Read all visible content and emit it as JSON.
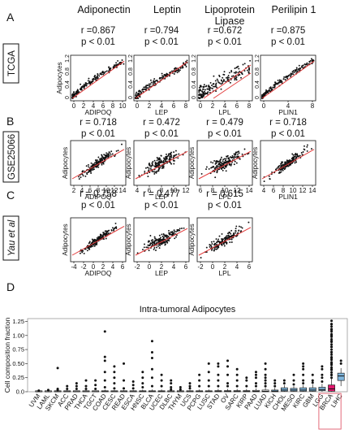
{
  "panels_header": {
    "columns": [
      "Adiponectin",
      "Leptin",
      "Lipoprotein\nLipase",
      "Perilipin 1"
    ]
  },
  "chart_data": [
    {
      "type": "scatter",
      "panel": "A",
      "dataset": "TCGA",
      "ylabel": "Adipocytes",
      "yticks": [
        "0",
        "0.4",
        "0.8",
        "1.2"
      ],
      "subplots": [
        {
          "xlabel": "ADIPOQ",
          "r": "r =0.867",
          "p": "p < 0.01",
          "xticks": [
            "0",
            "2",
            "4",
            "6",
            "8",
            "10"
          ],
          "xlim": [
            0,
            11
          ],
          "ylim": [
            0,
            1.3
          ],
          "corr": 0.867
        },
        {
          "xlabel": "LEP",
          "r": "r =0.794",
          "p": "p < 0.01",
          "xticks": [
            "0",
            "2",
            "4",
            "6",
            "8"
          ],
          "xlim": [
            0,
            9
          ],
          "ylim": [
            0,
            1.3
          ],
          "corr": 0.794
        },
        {
          "xlabel": "LPL",
          "r": "r =0.672",
          "p": "p < 0.01",
          "xticks": [
            "0",
            "2",
            "4",
            "6",
            "8"
          ],
          "xlim": [
            0,
            9
          ],
          "ylim": [
            0,
            1.3
          ],
          "corr": 0.672
        },
        {
          "xlabel": "PLIN1",
          "r": "r =0.875",
          "p": "p < 0.01",
          "xticks": [
            "0",
            "4",
            "8"
          ],
          "xlim": [
            0,
            10
          ],
          "ylim": [
            0,
            1.3
          ],
          "corr": 0.875
        }
      ]
    },
    {
      "type": "scatter",
      "panel": "B",
      "dataset": "GSE25066",
      "ylabel": "Adipocytes",
      "yticks": [],
      "subplots": [
        {
          "xlabel": "ADIPOQ",
          "r": "r = 0.718",
          "p": "p < 0.01",
          "xticks": [
            "2",
            "4",
            "6",
            "8",
            "10",
            "12",
            "14"
          ],
          "xlim": [
            1,
            15
          ],
          "corr": 0.718
        },
        {
          "xlabel": "LEP",
          "r": "r = 0.472",
          "p": "p < 0.01",
          "xticks": [
            "4",
            "6",
            "8",
            "10",
            "12"
          ],
          "xlim": [
            3,
            13
          ],
          "corr": 0.472
        },
        {
          "xlabel": "LPL",
          "r": "r = 0.479",
          "p": "p < 0.01",
          "xticks": [
            "6",
            "8",
            "10",
            "12",
            "14"
          ],
          "xlim": [
            5,
            15
          ],
          "corr": 0.479
        },
        {
          "xlabel": "PLIN1",
          "r": "r = 0.718",
          "p": "p < 0.01",
          "xticks": [
            "4",
            "6",
            "8",
            "10",
            "12",
            "14"
          ],
          "xlim": [
            3,
            15
          ],
          "corr": 0.718
        }
      ]
    },
    {
      "type": "scatter",
      "panel": "C",
      "dataset": "Yau et al",
      "ylabel": "Adipocytes",
      "yticks": [],
      "subplots": [
        {
          "xlabel": "ADIPOQ",
          "r": "r = 0.758",
          "p": "p < 0.01",
          "xticks": [
            "-4",
            "-2",
            "0",
            "2",
            "4",
            "6"
          ],
          "xlim": [
            -5,
            7
          ],
          "corr": 0.758
        },
        {
          "xlabel": "LEP",
          "r": "r = 0.477",
          "p": "p < 0.01",
          "xticks": [
            "-2",
            "0",
            "2",
            "4",
            "6"
          ],
          "xlim": [
            -3,
            7
          ],
          "corr": 0.477
        },
        {
          "xlabel": "LPL",
          "r": "r = 0.615",
          "p": "p < 0.01",
          "xticks": [
            "-2",
            "0",
            "2",
            "4",
            "6"
          ],
          "xlim": [
            -3,
            7
          ],
          "corr": 0.615
        }
      ]
    },
    {
      "type": "box",
      "panel": "D",
      "title": "Intra-tumoral Adipocytes",
      "ylabel": "Cell composition fraction",
      "yticks": [
        "0.0",
        "0.25",
        "0.50",
        "0.75",
        "1.00",
        "1.25"
      ],
      "ylim": [
        0,
        1.3
      ],
      "categories": [
        "UVM",
        "LAML",
        "SKCM",
        "ACC",
        "PRAD",
        "THCA",
        "TGCT",
        "COAD",
        "CESC",
        "READ",
        "ESCA",
        "HNSC",
        "BLCA",
        "UCEC",
        "DLBC",
        "THYM",
        "UCS",
        "PCPG",
        "LUSC",
        "STAD",
        "OV",
        "SARC",
        "KIRP",
        "PAAD",
        "LUAD",
        "KICH",
        "CHOL",
        "MESO",
        "KIRC",
        "GBM",
        "LGG",
        "BRCA",
        "LIHC"
      ],
      "highlight": "BRCA",
      "boxes": [
        {
          "q1": 0.0,
          "med": 0.0,
          "q3": 0.005,
          "wmax": 0.01,
          "out": [
            0.02
          ]
        },
        {
          "q1": 0.0,
          "med": 0.0,
          "q3": 0.005,
          "wmax": 0.01,
          "out": [
            0.03
          ]
        },
        {
          "q1": 0.0,
          "med": 0.002,
          "q3": 0.01,
          "wmax": 0.02,
          "out": [
            0.03,
            0.05,
            0.42
          ]
        },
        {
          "q1": 0.0,
          "med": 0.003,
          "q3": 0.01,
          "wmax": 0.03,
          "out": [
            0.05,
            0.1
          ]
        },
        {
          "q1": 0.0,
          "med": 0.002,
          "q3": 0.01,
          "wmax": 0.02,
          "out": [
            0.05,
            0.1,
            0.15
          ]
        },
        {
          "q1": 0.0,
          "med": 0.003,
          "q3": 0.01,
          "wmax": 0.03,
          "out": [
            0.05,
            0.1,
            0.2
          ]
        },
        {
          "q1": 0.0,
          "med": 0.002,
          "q3": 0.01,
          "wmax": 0.02,
          "out": [
            0.05,
            0.12,
            0.2
          ]
        },
        {
          "q1": 0.0,
          "med": 0.005,
          "q3": 0.015,
          "wmax": 0.04,
          "out": [
            0.08,
            0.2,
            0.35,
            0.55,
            0.62,
            1.07
          ]
        },
        {
          "q1": 0.0,
          "med": 0.004,
          "q3": 0.012,
          "wmax": 0.03,
          "out": [
            0.06,
            0.15,
            0.25,
            0.35,
            0.45
          ]
        },
        {
          "q1": 0.0,
          "med": 0.004,
          "q3": 0.012,
          "wmax": 0.03,
          "out": [
            0.06,
            0.2,
            0.5
          ]
        },
        {
          "q1": 0.0,
          "med": 0.004,
          "q3": 0.012,
          "wmax": 0.03,
          "out": [
            0.06,
            0.12,
            0.18
          ]
        },
        {
          "q1": 0.0,
          "med": 0.005,
          "q3": 0.015,
          "wmax": 0.04,
          "out": [
            0.08,
            0.15,
            0.25,
            0.35
          ]
        },
        {
          "q1": 0.0,
          "med": 0.005,
          "q3": 0.015,
          "wmax": 0.04,
          "out": [
            0.1,
            0.25,
            0.4,
            0.6,
            0.7,
            0.9
          ]
        },
        {
          "q1": 0.0,
          "med": 0.005,
          "q3": 0.015,
          "wmax": 0.04,
          "out": [
            0.1,
            0.2,
            0.3
          ]
        },
        {
          "q1": 0.0,
          "med": 0.003,
          "q3": 0.01,
          "wmax": 0.02,
          "out": [
            0.04,
            0.08,
            0.15,
            0.2
          ]
        },
        {
          "q1": 0.0,
          "med": 0.003,
          "q3": 0.01,
          "wmax": 0.02,
          "out": [
            0.04,
            0.08
          ]
        },
        {
          "q1": 0.0,
          "med": 0.004,
          "q3": 0.012,
          "wmax": 0.03,
          "out": [
            0.06,
            0.1,
            0.15
          ]
        },
        {
          "q1": 0.0,
          "med": 0.005,
          "q3": 0.015,
          "wmax": 0.04,
          "out": [
            0.1,
            0.2,
            0.3
          ]
        },
        {
          "q1": 0.0,
          "med": 0.005,
          "q3": 0.015,
          "wmax": 0.04,
          "out": [
            0.1,
            0.2,
            0.35,
            0.5
          ]
        },
        {
          "q1": 0.0,
          "med": 0.006,
          "q3": 0.02,
          "wmax": 0.05,
          "out": [
            0.1,
            0.2,
            0.3,
            0.45,
            0.5
          ]
        },
        {
          "q1": 0.0,
          "med": 0.006,
          "q3": 0.02,
          "wmax": 0.05,
          "out": [
            0.1,
            0.15,
            0.3,
            0.45,
            0.55
          ]
        },
        {
          "q1": 0.0,
          "med": 0.006,
          "q3": 0.02,
          "wmax": 0.05,
          "out": [
            0.1,
            0.2,
            0.3,
            0.4
          ]
        },
        {
          "q1": 0.0,
          "med": 0.006,
          "q3": 0.02,
          "wmax": 0.05,
          "out": [
            0.1,
            0.2,
            0.25
          ]
        },
        {
          "q1": 0.0,
          "med": 0.008,
          "q3": 0.025,
          "wmax": 0.06,
          "out": [
            0.1,
            0.15,
            0.25,
            0.3,
            0.35
          ]
        },
        {
          "q1": 0.0,
          "med": 0.008,
          "q3": 0.03,
          "wmax": 0.07,
          "out": [
            0.1,
            0.15,
            0.2,
            0.25,
            0.3,
            0.4,
            0.5
          ]
        },
        {
          "q1": 0.0,
          "med": 0.01,
          "q3": 0.03,
          "wmax": 0.07,
          "out": [
            0.1,
            0.15,
            0.2
          ]
        },
        {
          "q1": 0.01,
          "med": 0.03,
          "q3": 0.07,
          "wmax": 0.12,
          "out": [
            0.15,
            0.2
          ]
        },
        {
          "q1": 0.01,
          "med": 0.03,
          "q3": 0.06,
          "wmax": 0.1,
          "out": [
            0.13,
            0.2,
            0.3
          ]
        },
        {
          "q1": 0.01,
          "med": 0.03,
          "q3": 0.07,
          "wmax": 0.12,
          "out": [
            0.15,
            0.2,
            0.3,
            0.4,
            0.45,
            0.5
          ]
        },
        {
          "q1": 0.01,
          "med": 0.03,
          "q3": 0.07,
          "wmax": 0.13,
          "out": [
            0.16,
            0.2,
            0.3
          ]
        },
        {
          "q1": 0.02,
          "med": 0.04,
          "q3": 0.08,
          "wmax": 0.14,
          "out": [
            0.18,
            0.25,
            0.3,
            0.4,
            0.45
          ]
        },
        {
          "q1": 0.01,
          "med": 0.05,
          "q3": 0.12,
          "wmax": 0.25,
          "out": [
            0.3,
            0.4,
            0.5,
            0.6,
            0.7,
            0.8,
            0.9,
            1.0,
            1.1,
            1.2,
            1.26
          ]
        },
        {
          "q1": 0.2,
          "med": 0.28,
          "q3": 0.33,
          "wmax": 0.42,
          "wmin": 0.1,
          "out": [
            0.5,
            0.55
          ]
        }
      ]
    }
  ],
  "colors": {
    "box_blue": "#7fb6dd",
    "box_pink": "#e0186d",
    "box_white": "#ffffff",
    "fit_red": "#e23a3a",
    "highlight_box": "#e05a6a"
  }
}
